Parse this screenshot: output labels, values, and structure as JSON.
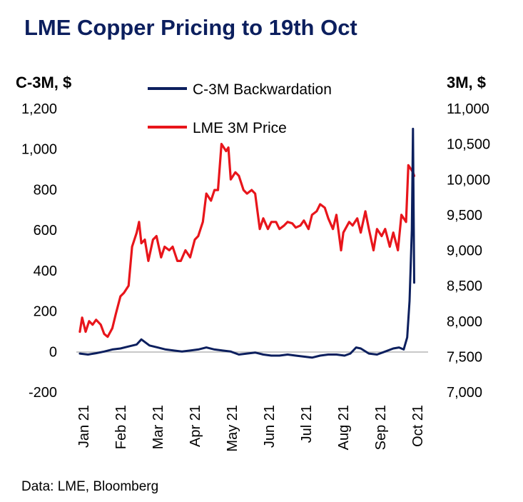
{
  "chart_data": {
    "type": "line",
    "title": "LME Copper Pricing to 19th Oct",
    "y_left_label": "C-3M, $",
    "y_right_label": "3M, $",
    "y_left_lim": [
      -200,
      1200
    ],
    "y_left_ticks": [
      "-200",
      "0",
      "200",
      "400",
      "600",
      "800",
      "1,000",
      "1,200"
    ],
    "y_right_lim": [
      7000,
      11000
    ],
    "y_right_ticks": [
      "7,000",
      "7,500",
      "8,000",
      "8,500",
      "9,000",
      "9,500",
      "10,000",
      "10,500",
      "11,000"
    ],
    "x_ticks": [
      "Jan 21",
      "Feb 21",
      "Mar 21",
      "Apr 21",
      "May 21",
      "Jun 21",
      "Jul 21",
      "Aug 21",
      "Sep 21",
      "Oct 21"
    ],
    "legend_position": "top-center",
    "source": "Data: LME, Bloomberg",
    "colors": {
      "title": "#0c1f5e",
      "backwardation": "#0c1f5e",
      "price": "#e8151b"
    },
    "series": [
      {
        "name": "C-3M Backwardation",
        "axis": "left",
        "x": [
          "2021-01-04",
          "2021-01-11",
          "2021-01-18",
          "2021-01-25",
          "2021-02-01",
          "2021-02-08",
          "2021-02-15",
          "2021-02-22",
          "2021-02-26",
          "2021-03-05",
          "2021-03-12",
          "2021-03-19",
          "2021-03-26",
          "2021-04-02",
          "2021-04-09",
          "2021-04-16",
          "2021-04-23",
          "2021-04-30",
          "2021-05-07",
          "2021-05-14",
          "2021-05-21",
          "2021-05-28",
          "2021-06-04",
          "2021-06-11",
          "2021-06-18",
          "2021-06-25",
          "2021-07-02",
          "2021-07-09",
          "2021-07-16",
          "2021-07-23",
          "2021-07-30",
          "2021-08-06",
          "2021-08-13",
          "2021-08-20",
          "2021-08-25",
          "2021-08-30",
          "2021-09-03",
          "2021-09-10",
          "2021-09-17",
          "2021-09-24",
          "2021-10-01",
          "2021-10-06",
          "2021-10-10",
          "2021-10-13",
          "2021-10-15",
          "2021-10-17",
          "2021-10-18",
          "2021-10-19"
        ],
        "values": [
          -10,
          -15,
          -8,
          0,
          10,
          15,
          25,
          35,
          60,
          30,
          20,
          10,
          5,
          0,
          5,
          10,
          20,
          10,
          5,
          0,
          -15,
          -10,
          -5,
          -15,
          -20,
          -20,
          -15,
          -20,
          -25,
          -30,
          -20,
          -15,
          -15,
          -20,
          -10,
          20,
          15,
          -10,
          -15,
          0,
          15,
          20,
          10,
          70,
          250,
          600,
          1100,
          340
        ]
      },
      {
        "name": "LME 3M Price",
        "axis": "right",
        "x": [
          "2021-01-04",
          "2021-01-06",
          "2021-01-09",
          "2021-01-12",
          "2021-01-15",
          "2021-01-18",
          "2021-01-22",
          "2021-01-25",
          "2021-01-28",
          "2021-02-01",
          "2021-02-04",
          "2021-02-08",
          "2021-02-11",
          "2021-02-15",
          "2021-02-18",
          "2021-02-22",
          "2021-02-24",
          "2021-02-26",
          "2021-03-01",
          "2021-03-04",
          "2021-03-08",
          "2021-03-11",
          "2021-03-15",
          "2021-03-18",
          "2021-03-22",
          "2021-03-25",
          "2021-03-29",
          "2021-04-01",
          "2021-04-05",
          "2021-04-09",
          "2021-04-13",
          "2021-04-16",
          "2021-04-20",
          "2021-04-23",
          "2021-04-27",
          "2021-04-30",
          "2021-05-03",
          "2021-05-06",
          "2021-05-10",
          "2021-05-12",
          "2021-05-14",
          "2021-05-18",
          "2021-05-21",
          "2021-05-25",
          "2021-05-28",
          "2021-06-01",
          "2021-06-04",
          "2021-06-08",
          "2021-06-11",
          "2021-06-15",
          "2021-06-18",
          "2021-06-22",
          "2021-06-25",
          "2021-06-29",
          "2021-07-02",
          "2021-07-06",
          "2021-07-09",
          "2021-07-13",
          "2021-07-16",
          "2021-07-20",
          "2021-07-23",
          "2021-07-27",
          "2021-07-30",
          "2021-08-03",
          "2021-08-06",
          "2021-08-10",
          "2021-08-13",
          "2021-08-17",
          "2021-08-19",
          "2021-08-24",
          "2021-08-27",
          "2021-08-31",
          "2021-09-03",
          "2021-09-07",
          "2021-09-10",
          "2021-09-14",
          "2021-09-17",
          "2021-09-21",
          "2021-09-24",
          "2021-09-28",
          "2021-10-01",
          "2021-10-05",
          "2021-10-08",
          "2021-10-12",
          "2021-10-14",
          "2021-10-18",
          "2021-10-19"
        ],
        "values": [
          7850,
          8050,
          7850,
          8000,
          7950,
          8020,
          7950,
          7820,
          7780,
          7900,
          8100,
          8350,
          8400,
          8500,
          9050,
          9250,
          9400,
          9100,
          9150,
          8850,
          9150,
          9200,
          8900,
          9050,
          9000,
          9050,
          8850,
          8850,
          9000,
          8900,
          9150,
          9200,
          9400,
          9800,
          9700,
          9850,
          9850,
          10500,
          10400,
          10450,
          10000,
          10100,
          10050,
          9850,
          9800,
          9850,
          9800,
          9300,
          9450,
          9300,
          9400,
          9400,
          9300,
          9350,
          9400,
          9380,
          9320,
          9350,
          9420,
          9300,
          9500,
          9550,
          9650,
          9600,
          9450,
          9300,
          9500,
          9000,
          9250,
          9400,
          9350,
          9450,
          9250,
          9550,
          9300,
          9000,
          9300,
          9200,
          9300,
          9050,
          9250,
          9000,
          9500,
          9400,
          10200,
          10100,
          10050
        ]
      }
    ]
  }
}
